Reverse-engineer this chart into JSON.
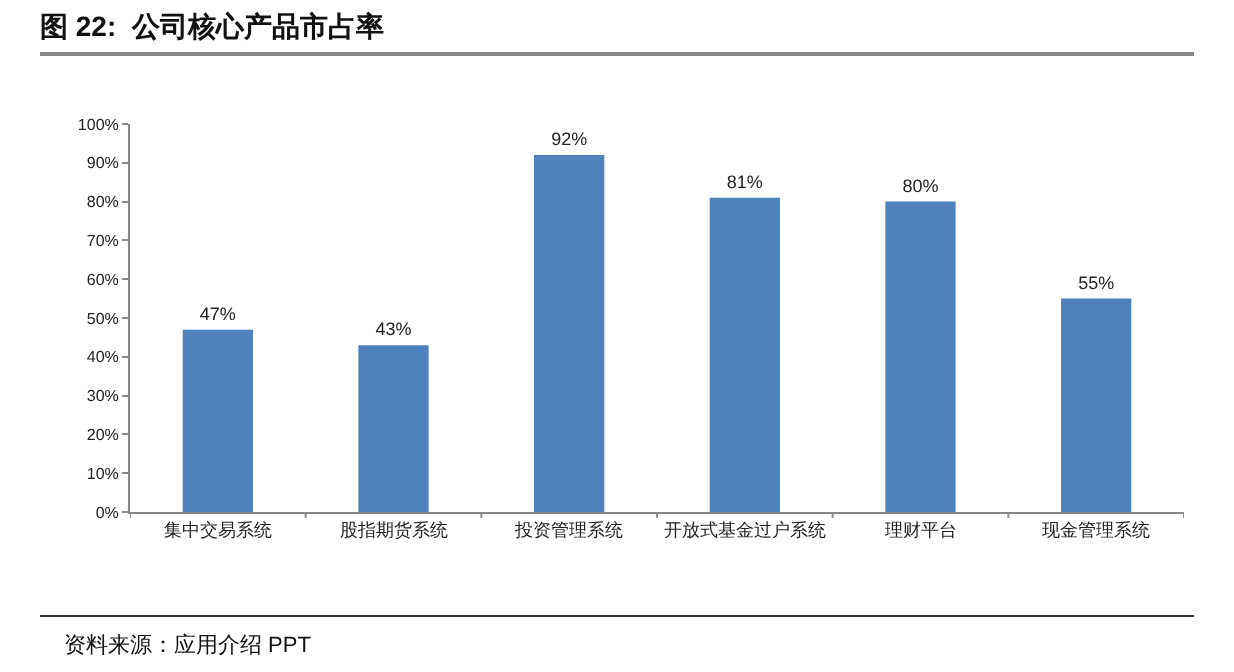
{
  "chart_data": {
    "type": "bar",
    "title": "图 22:  公司核心产品市占率",
    "categories": [
      "集中交易系统",
      "股指期货系统",
      "投资管理系统",
      "开放式基金过户系统",
      "理财平台",
      "现金管理系统"
    ],
    "values": [
      47,
      43,
      92,
      81,
      80,
      55
    ],
    "value_labels": [
      "47%",
      "43%",
      "92%",
      "81%",
      "80%",
      "55%"
    ],
    "color": "#4f81bd",
    "ylim": [
      0,
      100
    ],
    "yticks": [
      {
        "value": 0,
        "label": "0%"
      },
      {
        "value": 10,
        "label": "10%"
      },
      {
        "value": 20,
        "label": "20%"
      },
      {
        "value": 30,
        "label": "30%"
      },
      {
        "value": 40,
        "label": "40%"
      },
      {
        "value": 50,
        "label": "50%"
      },
      {
        "value": 60,
        "label": "60%"
      },
      {
        "value": 70,
        "label": "70%"
      },
      {
        "value": 80,
        "label": "80%"
      },
      {
        "value": 90,
        "label": "90%"
      },
      {
        "value": 100,
        "label": "100%"
      }
    ],
    "legend": false,
    "annotations": [
      "资料来源：应用介绍 PPT"
    ]
  }
}
